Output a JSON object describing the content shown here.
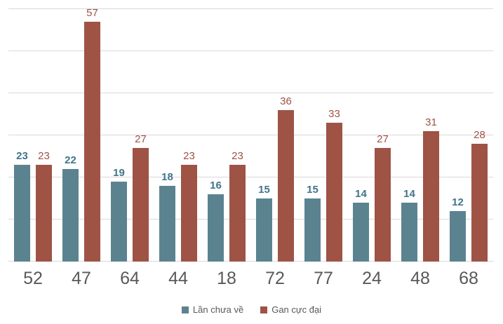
{
  "chart_data": {
    "type": "bar",
    "title": "",
    "xlabel": "",
    "ylabel": "",
    "categories": [
      "52",
      "47",
      "64",
      "44",
      "18",
      "72",
      "77",
      "24",
      "48",
      "68"
    ],
    "series": [
      {
        "name": "Lần chưa về",
        "color": "#5B838F",
        "label_color": "#41758A",
        "label_bold": true,
        "values": [
          23,
          22,
          19,
          18,
          16,
          15,
          15,
          14,
          14,
          12
        ]
      },
      {
        "name": "Gan cực đại",
        "color": "#9E5345",
        "label_color": "#9E5345",
        "label_bold": false,
        "values": [
          23,
          57,
          27,
          23,
          23,
          36,
          33,
          27,
          31,
          28
        ]
      }
    ],
    "ylim": [
      0,
      60
    ],
    "grid": true,
    "grid_step": 10,
    "gridline_color": "#d9d9d9",
    "axis_label_color": "#595959",
    "legend_position": "bottom",
    "data_labels": true
  }
}
